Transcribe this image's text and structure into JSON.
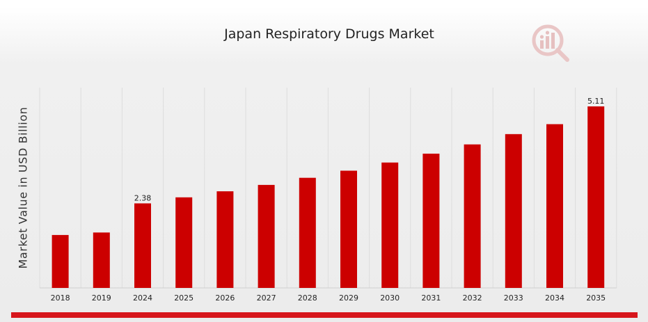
{
  "chart_data": {
    "type": "bar",
    "title": "Japan Respiratory Drugs Market",
    "xlabel": "",
    "ylabel": "Market Value in USD Billion",
    "categories": [
      "2018",
      "2019",
      "2024",
      "2025",
      "2026",
      "2027",
      "2028",
      "2029",
      "2030",
      "2031",
      "2032",
      "2033",
      "2034",
      "2035"
    ],
    "values": [
      1.49,
      1.56,
      2.38,
      2.55,
      2.72,
      2.9,
      3.1,
      3.3,
      3.53,
      3.78,
      4.04,
      4.33,
      4.61,
      5.11
    ],
    "data_labels": [
      {
        "category": "2024",
        "text": "2.38"
      },
      {
        "category": "2035",
        "text": "5.11"
      }
    ],
    "ylim": [
      0,
      5.11
    ],
    "grid": "vertical",
    "colors": {
      "bar": "#cc0000",
      "grid": "#dddddd",
      "accent": "#d7161c"
    }
  }
}
